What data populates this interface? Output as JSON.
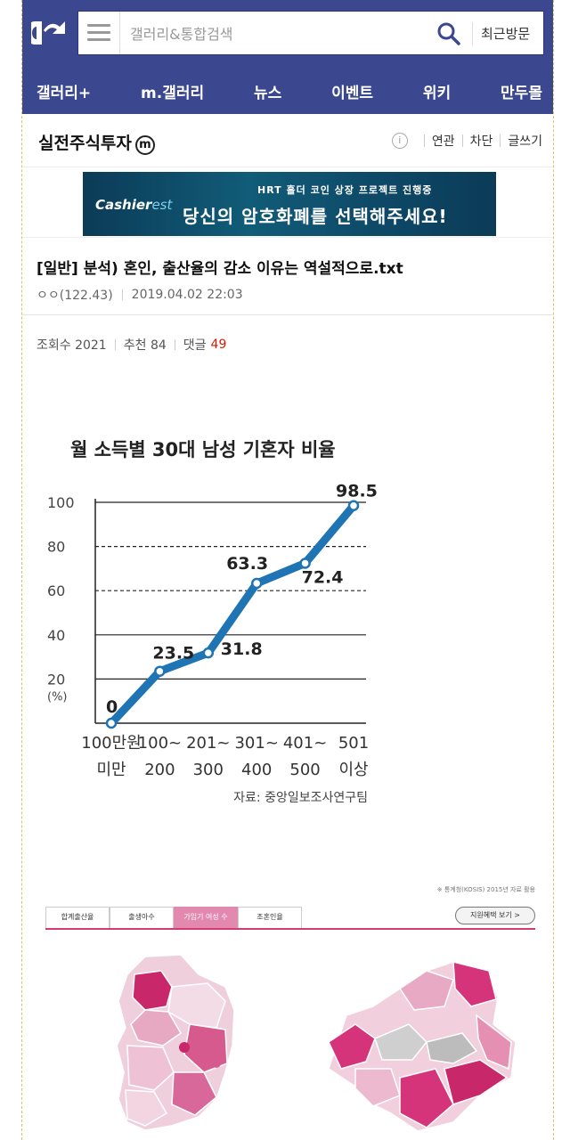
{
  "header": {
    "search_placeholder": "갤러리&통합검색",
    "recent_label": "최근방문"
  },
  "nav": {
    "items": [
      "갤러리+",
      "m.갤러리",
      "뉴스",
      "이벤트",
      "위키",
      "만두몰"
    ]
  },
  "gallery": {
    "title": "실전주식투자",
    "badge": "m",
    "tools": [
      "연관",
      "차단",
      "글쓰기"
    ]
  },
  "ad": {
    "brand_main": "Cashier",
    "brand_sub": "est",
    "line1": "HRT 홀더 코인 상장 프로젝트 진행중",
    "line2": "당신의 암호화폐를 선택해주세요!"
  },
  "post": {
    "title": "[일반] 분석) 혼인, 출산율의 감소 이유는 역설적으로.txt",
    "author": "ㅇㅇ(122.43)",
    "date": "2019.04.02 22:03",
    "views_label": "조회수 2021",
    "likes_label": "추천 84",
    "comments_label": "댓글",
    "comments_count": "49"
  },
  "chart_data": {
    "type": "line",
    "title": "월 소득별 30대 남성 기혼자 비율",
    "ylabel": "(%)",
    "categories": [
      [
        "100만원",
        "미만"
      ],
      [
        "100~",
        "200"
      ],
      [
        "201~",
        "300"
      ],
      [
        "301~",
        "400"
      ],
      [
        "401~",
        "500"
      ],
      [
        "501",
        "이상"
      ]
    ],
    "values": [
      0,
      23.5,
      31.8,
      63.3,
      72.4,
      98.5
    ],
    "value_labels": [
      "0",
      "23.5",
      "31.8",
      "63.3",
      "72.4",
      "98.5"
    ],
    "yticks": [
      "100",
      "80",
      "60",
      "40",
      "20"
    ],
    "ylim": [
      0,
      100
    ],
    "source": "자료: 중앙일보조사연구팀",
    "line_color": "#1f74b4"
  },
  "infographic": {
    "source_note": "※ 통계청(KOSIS) 2015년 자료 활용",
    "tabs": [
      "합계출산율",
      "출생아수",
      "가임기 여성 수",
      "조혼인율"
    ],
    "active_tab": 2,
    "benefit_button": "지원혜택 보기 >"
  }
}
